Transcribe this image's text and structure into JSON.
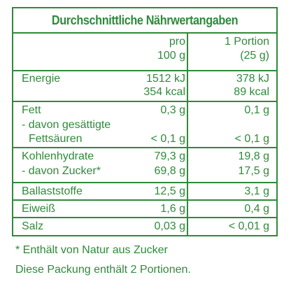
{
  "title": "Durchschnittliche Nährwertangaben",
  "header": {
    "col1_line1": "pro",
    "col1_line2": "100 g",
    "col2_line1": "1 Portion",
    "col2_line2": "(25 g)"
  },
  "rows": {
    "energie": {
      "label": "Energie",
      "v1a": "1512 kJ",
      "v1b": "354 kcal",
      "v2a": "378 kJ",
      "v2b": "89 kcal"
    },
    "fett": {
      "label": "Fett",
      "v1": "0,3 g",
      "v2": "0,1 g"
    },
    "gesaettigte": {
      "label1": "- davon gesättigte",
      "label2": "Fettsäuren",
      "v1": "< 0,1 g",
      "v2": "< 0,1 g"
    },
    "kohlenhydrate": {
      "label": "Kohlenhydrate",
      "v1": "79,3 g",
      "v2": "19,8 g"
    },
    "zucker": {
      "label": "- davon Zucker*",
      "v1": "69,8 g",
      "v2": "17,5 g"
    },
    "ballaststoffe": {
      "label": "Ballaststoffe",
      "v1": "12,5 g",
      "v2": "3,1 g"
    },
    "eiweiss": {
      "label": "Eiweiß",
      "v1": "1,6 g",
      "v2": "0,4 g"
    },
    "salz": {
      "label": "Salz",
      "v1": "0,03 g",
      "v2": "< 0,01 g"
    }
  },
  "footnotes": {
    "asterisk": "* Enthält von Natur aus Zucker",
    "portions": "Diese Packung enthält 2 Portionen."
  },
  "colors": {
    "text": "#2f8a3a",
    "border": "#2f8a3a",
    "background": "#ffffff"
  }
}
